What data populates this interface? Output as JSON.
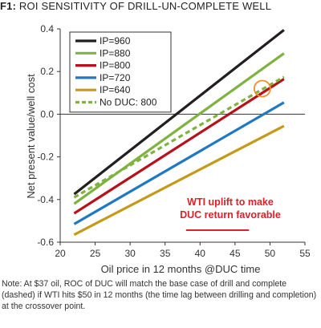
{
  "figure": {
    "label": "F1:",
    "title": "ROI SENSITIVITY OF DRILL-UN-COMPLETE WELL"
  },
  "note": "Note: At $37 oil, ROC of DUC will match the base case of drill and complete (dashed) if WTI hits $50 in 12 months (the time lag between drilling and completion) at the crossover point.",
  "chart_data": {
    "type": "line",
    "xlabel": "Oil price in 12 months @DUC time",
    "ylabel": "Net present value/well cost",
    "xlim": [
      20,
      55
    ],
    "ylim": [
      -0.6,
      0.4
    ],
    "xticks": [
      "20",
      "25",
      "30",
      "35",
      "40",
      "45",
      "50",
      "55"
    ],
    "yticks": [
      "-0.6",
      "-0.4",
      "-0.2",
      "0.0",
      "0.2",
      "0.4"
    ],
    "grid": false,
    "legend_position": "top-left",
    "series": [
      {
        "name": "IP=960",
        "color": "#231f20",
        "dashed": false,
        "x": [
          22,
          52
        ],
        "y": [
          -0.375,
          0.395
        ]
      },
      {
        "name": "IP=880",
        "color": "#7fb241",
        "dashed": false,
        "x": [
          22,
          52
        ],
        "y": [
          -0.42,
          0.285
        ]
      },
      {
        "name": "IP=800",
        "color": "#b5121b",
        "dashed": false,
        "x": [
          22,
          52
        ],
        "y": [
          -0.465,
          0.165
        ]
      },
      {
        "name": "IP=720",
        "color": "#1f78c1",
        "dashed": false,
        "x": [
          22,
          52
        ],
        "y": [
          -0.515,
          0.055
        ]
      },
      {
        "name": "IP=640",
        "color": "#c49a1a",
        "dashed": false,
        "x": [
          22,
          52
        ],
        "y": [
          -0.565,
          -0.055
        ]
      },
      {
        "name": "No DUC: 800",
        "color": "#7fb241",
        "dashed": true,
        "x": [
          22,
          52
        ],
        "y": [
          -0.39,
          0.175
        ]
      }
    ],
    "annotations": [
      {
        "type": "circle",
        "x": 48.9,
        "y": 0.12,
        "color": "#f28c28"
      },
      {
        "type": "text",
        "text": "WTI uplift to make DUC return favorable",
        "lines": [
          "WTI uplift to make",
          "DUC return favorable"
        ],
        "color": "#e0202a"
      },
      {
        "type": "arrow",
        "x_from": 38,
        "x_to": 47,
        "y": -0.545,
        "color": "#e0202a"
      }
    ]
  }
}
